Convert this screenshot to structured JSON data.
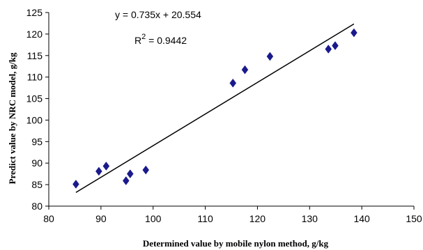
{
  "chart_data": {
    "type": "scatter",
    "xlabel": "Determined value by mobile nylon method, g/kg",
    "ylabel": "Predict value by NRC model, g/kg",
    "xlim": [
      80,
      150
    ],
    "ylim": [
      80,
      125
    ],
    "xticks": [
      "80",
      "90",
      "100",
      "110",
      "120",
      "130",
      "140",
      "150"
    ],
    "yticks": [
      "80",
      "85",
      "90",
      "95",
      "100",
      "105",
      "110",
      "115",
      "120",
      "125"
    ],
    "grid": false,
    "marker": "diamond",
    "marker_color": "#1a1a8c",
    "series": [
      {
        "x": [
          85.2,
          89.6,
          91.0,
          94.8,
          95.6,
          98.6,
          115.3,
          117.6,
          122.4,
          133.6,
          134.9,
          138.5
        ],
        "y": [
          85.1,
          88.1,
          89.3,
          85.9,
          87.5,
          88.4,
          108.6,
          111.7,
          114.8,
          116.5,
          117.3,
          120.3
        ]
      }
    ],
    "trendline": {
      "slope": 0.735,
      "intercept": 20.554,
      "x_range": [
        85.2,
        138.5
      ],
      "equation": "y = 0.735x + 20.554",
      "r2_prefix": "R",
      "r2_sup": "2",
      "r2_value": " = 0.9442"
    }
  }
}
